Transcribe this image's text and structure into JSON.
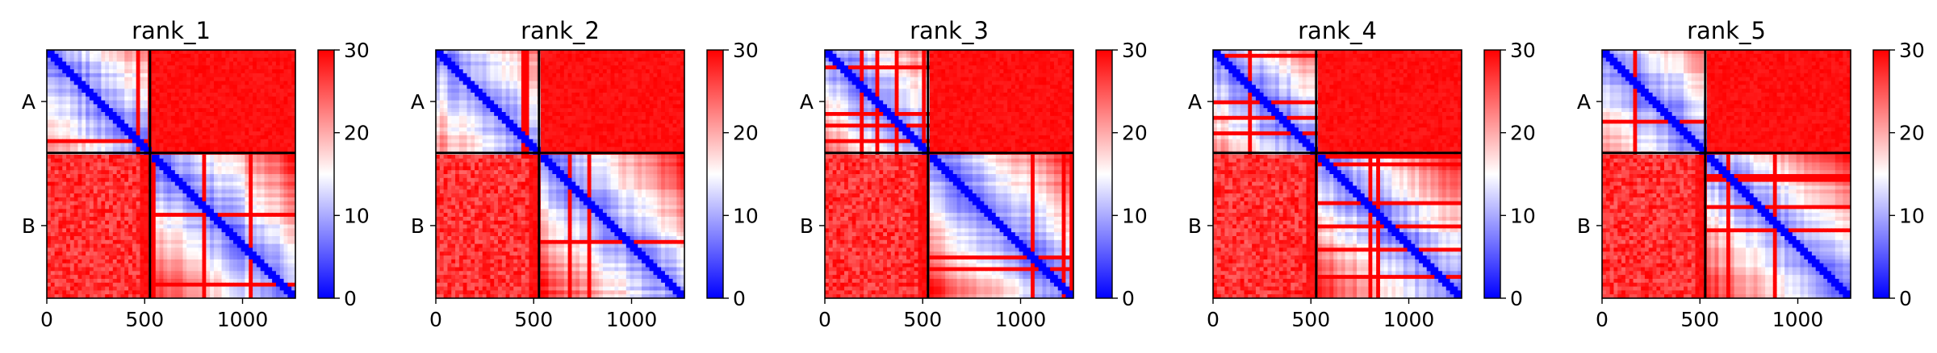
{
  "colors": {
    "low": "#0000ff",
    "mid": "#ffffff",
    "high": "#ff0000",
    "frame": "#000000"
  },
  "chart_data": [
    {
      "type": "heatmap",
      "title": "rank_1",
      "colormap": "bwr",
      "xlim": [
        0,
        1270
      ],
      "xticks": [
        0,
        500,
        1000
      ],
      "xlabel": "",
      "ylabel": "",
      "yticklabels": [
        "A",
        "B"
      ],
      "chain_boundary": 527,
      "total_length": 1270,
      "values_range": [
        0,
        30
      ],
      "colorbar": {
        "ticks": [
          0,
          10,
          20,
          30
        ]
      },
      "blocks": [
        {
          "chain_x": "A",
          "chain_y": "A",
          "typical_value": 8
        },
        {
          "chain_x": "B",
          "chain_y": "A",
          "typical_value": 30
        },
        {
          "chain_x": "A",
          "chain_y": "B",
          "typical_value": 30
        },
        {
          "chain_x": "B",
          "chain_y": "B",
          "typical_value": 8
        }
      ]
    },
    {
      "type": "heatmap",
      "title": "rank_2",
      "colormap": "bwr",
      "xlim": [
        0,
        1270
      ],
      "xticks": [
        0,
        500,
        1000
      ],
      "xlabel": "",
      "ylabel": "",
      "yticklabels": [
        "A",
        "B"
      ],
      "chain_boundary": 527,
      "total_length": 1270,
      "values_range": [
        0,
        30
      ],
      "colorbar": {
        "ticks": [
          0,
          10,
          20,
          30
        ]
      },
      "blocks": [
        {
          "chain_x": "A",
          "chain_y": "A",
          "typical_value": 8
        },
        {
          "chain_x": "B",
          "chain_y": "A",
          "typical_value": 30
        },
        {
          "chain_x": "A",
          "chain_y": "B",
          "typical_value": 30
        },
        {
          "chain_x": "B",
          "chain_y": "B",
          "typical_value": 8
        }
      ]
    },
    {
      "type": "heatmap",
      "title": "rank_3",
      "colormap": "bwr",
      "xlim": [
        0,
        1270
      ],
      "xticks": [
        0,
        500,
        1000
      ],
      "xlabel": "",
      "ylabel": "",
      "yticklabels": [
        "A",
        "B"
      ],
      "chain_boundary": 527,
      "total_length": 1270,
      "values_range": [
        0,
        30
      ],
      "colorbar": {
        "ticks": [
          0,
          10,
          20,
          30
        ]
      },
      "blocks": [
        {
          "chain_x": "A",
          "chain_y": "A",
          "typical_value": 8
        },
        {
          "chain_x": "B",
          "chain_y": "A",
          "typical_value": 30
        },
        {
          "chain_x": "A",
          "chain_y": "B",
          "typical_value": 30
        },
        {
          "chain_x": "B",
          "chain_y": "B",
          "typical_value": 8
        }
      ]
    },
    {
      "type": "heatmap",
      "title": "rank_4",
      "colormap": "bwr",
      "xlim": [
        0,
        1270
      ],
      "xticks": [
        0,
        500,
        1000
      ],
      "xlabel": "",
      "ylabel": "",
      "yticklabels": [
        "A",
        "B"
      ],
      "chain_boundary": 527,
      "total_length": 1270,
      "values_range": [
        0,
        30
      ],
      "colorbar": {
        "ticks": [
          0,
          10,
          20,
          30
        ]
      },
      "blocks": [
        {
          "chain_x": "A",
          "chain_y": "A",
          "typical_value": 8
        },
        {
          "chain_x": "B",
          "chain_y": "A",
          "typical_value": 30
        },
        {
          "chain_x": "A",
          "chain_y": "B",
          "typical_value": 30
        },
        {
          "chain_x": "B",
          "chain_y": "B",
          "typical_value": 8
        }
      ]
    },
    {
      "type": "heatmap",
      "title": "rank_5",
      "colormap": "bwr",
      "xlim": [
        0,
        1270
      ],
      "xticks": [
        0,
        500,
        1000
      ],
      "xlabel": "",
      "ylabel": "",
      "yticklabels": [
        "A",
        "B"
      ],
      "chain_boundary": 527,
      "total_length": 1270,
      "values_range": [
        0,
        30
      ],
      "colorbar": {
        "ticks": [
          0,
          10,
          20,
          30
        ]
      },
      "blocks": [
        {
          "chain_x": "A",
          "chain_y": "A",
          "typical_value": 8
        },
        {
          "chain_x": "B",
          "chain_y": "A",
          "typical_value": 30
        },
        {
          "chain_x": "A",
          "chain_y": "B",
          "typical_value": 30
        },
        {
          "chain_x": "B",
          "chain_y": "B",
          "typical_value": 8
        }
      ]
    }
  ]
}
